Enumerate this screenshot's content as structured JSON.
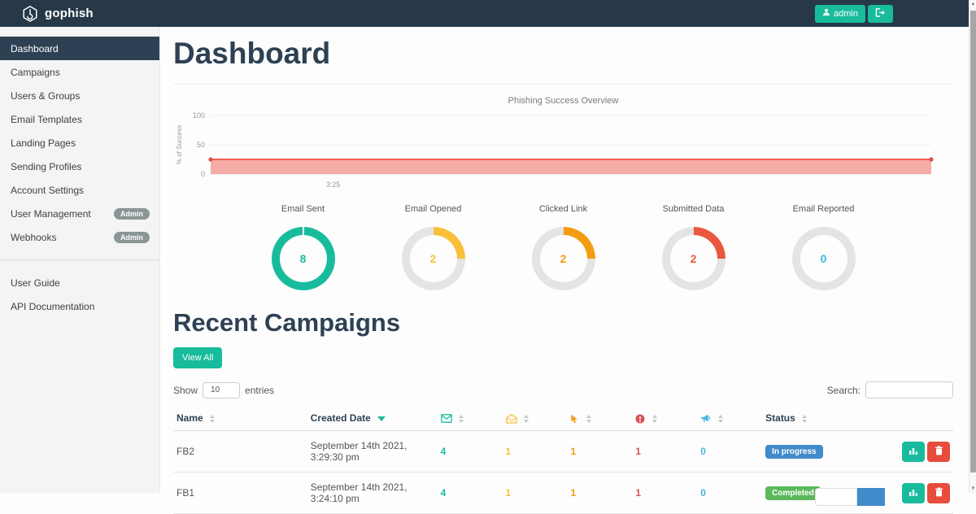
{
  "navbar": {
    "brand": "gophish",
    "user_label": "admin",
    "bg_color": "#273849",
    "button_color": "#18BC9C"
  },
  "sidebar": {
    "items": [
      {
        "label": "Dashboard",
        "active": true
      },
      {
        "label": "Campaigns"
      },
      {
        "label": "Users & Groups"
      },
      {
        "label": "Email Templates"
      },
      {
        "label": "Landing Pages"
      },
      {
        "label": "Sending Profiles"
      },
      {
        "label": "Account Settings"
      },
      {
        "label": "User Management",
        "badge": "Admin"
      },
      {
        "label": "Webhooks",
        "badge": "Admin"
      }
    ],
    "footer_items": [
      {
        "label": "User Guide"
      },
      {
        "label": "API Documentation"
      }
    ]
  },
  "page_title": "Dashboard",
  "chart_data": {
    "type": "area",
    "title": "Phishing Success Overview",
    "ylabel": "% of Success",
    "ylim": [
      0,
      100
    ],
    "yticks": [
      0,
      50,
      100
    ],
    "xticks": [
      {
        "label": "3:25",
        "pos": 0.17
      }
    ],
    "grid": true,
    "series": [
      {
        "name": "% of Success",
        "color": "#F05B4F",
        "fill": "rgba(240,91,79,0.5)",
        "dot_color": "#d9534f",
        "points": [
          {
            "x": 0,
            "y": 25
          },
          {
            "x": 1,
            "y": 25
          }
        ]
      }
    ]
  },
  "stats": [
    {
      "label": "Email Sent",
      "value": 8,
      "total": 8,
      "color": "#18BC9C"
    },
    {
      "label": "Email Opened",
      "value": 2,
      "total": 8,
      "color": "#F9BF3B"
    },
    {
      "label": "Clicked Link",
      "value": 2,
      "total": 8,
      "color": "#F39C12"
    },
    {
      "label": "Submitted Data",
      "value": 2,
      "total": 8,
      "color": "#E9573F"
    },
    {
      "label": "Email Reported",
      "value": 0,
      "total": 8,
      "color": "#41B6E6"
    }
  ],
  "recent": {
    "title": "Recent Campaigns",
    "view_all": "View All",
    "show_label": "Show",
    "entries_label": "entries",
    "page_size": "10",
    "search_label": "Search:",
    "search_value": ""
  },
  "table": {
    "headers": {
      "name": "Name",
      "created": "Created Date",
      "status": "Status",
      "icons": [
        {
          "name": "envelope-icon",
          "color": "#18BC9C"
        },
        {
          "name": "envelope-open-icon",
          "color": "#F9BF3B"
        },
        {
          "name": "cursor-icon",
          "color": "#F39C12"
        },
        {
          "name": "exclamation-circle-icon",
          "color": "#D9534F"
        },
        {
          "name": "megaphone-icon",
          "color": "#41B6E6"
        }
      ]
    },
    "rows": [
      {
        "name": "FB2",
        "created": "September 14th 2021, 3:29:30 pm",
        "sent": "4",
        "opened": "1",
        "clicked": "1",
        "submitted": "1",
        "reported": "0",
        "status": "In progress",
        "status_color": "#428BCA"
      },
      {
        "name": "FB1",
        "created": "September 14th 2021, 3:24:10 pm",
        "sent": "4",
        "opened": "1",
        "clicked": "1",
        "submitted": "1",
        "reported": "0",
        "status": "Completed",
        "status_color": "#5CB85C"
      }
    ]
  }
}
